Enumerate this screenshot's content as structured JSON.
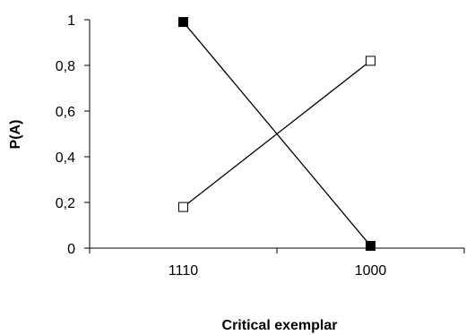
{
  "chart_data": {
    "type": "line",
    "xlabel": "Critical exemplar",
    "ylabel": "P(A)",
    "categories": [
      "1110",
      "1000"
    ],
    "ylim": [
      0,
      1
    ],
    "yticks": [
      "0",
      "0,2",
      "0,4",
      "0,6",
      "0,8",
      "1"
    ],
    "grid": false,
    "legend": "none",
    "series": [
      {
        "values": [
          0.99,
          0.01
        ],
        "marker": "filled-square",
        "color": "#000000"
      },
      {
        "values": [
          0.18,
          0.82
        ],
        "marker": "open-square",
        "color": "#000000"
      }
    ]
  }
}
